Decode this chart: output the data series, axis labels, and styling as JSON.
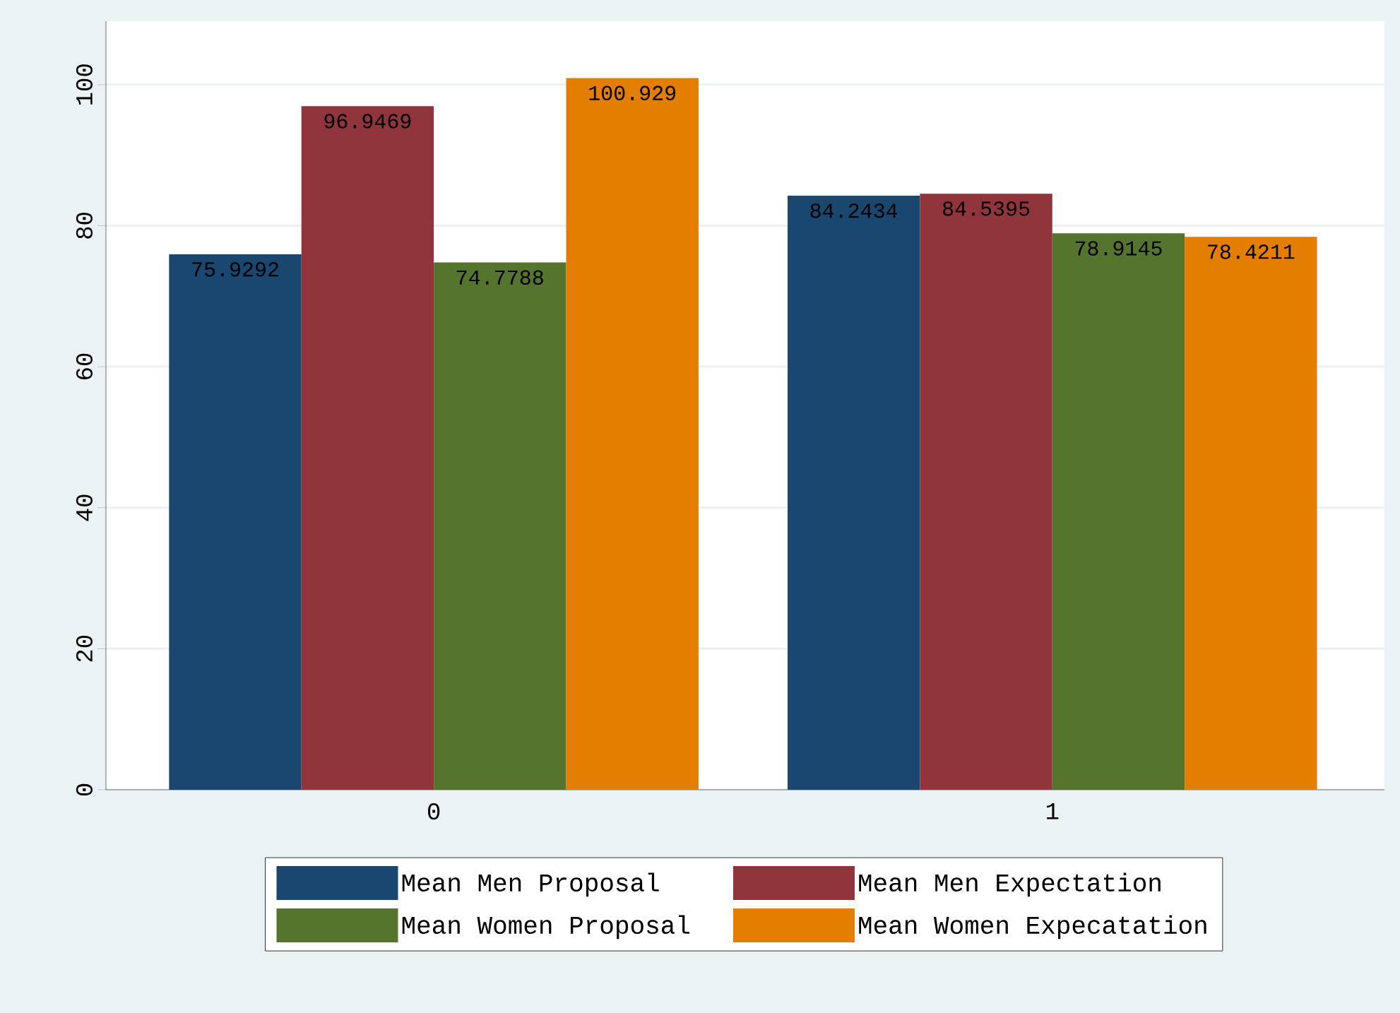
{
  "chart_data": {
    "type": "bar",
    "categories": [
      "0",
      "1"
    ],
    "series": [
      {
        "name": "Mean Men Proposal",
        "color": "#1a476f",
        "values": [
          75.9292,
          84.2434
        ]
      },
      {
        "name": "Mean Men Expectation",
        "color": "#90353b",
        "values": [
          96.9469,
          84.5395
        ]
      },
      {
        "name": "Mean Women Proposal",
        "color": "#55752f",
        "values": [
          74.7788,
          78.9145
        ]
      },
      {
        "name": "Mean Women Expecatation",
        "color": "#e37e00",
        "values": [
          100.929,
          78.4211
        ]
      }
    ],
    "ylim": [
      0,
      109
    ],
    "yticks": [
      0,
      20,
      40,
      60,
      80,
      100
    ],
    "grid": "y",
    "legend": "bottom",
    "data_labels": true
  }
}
